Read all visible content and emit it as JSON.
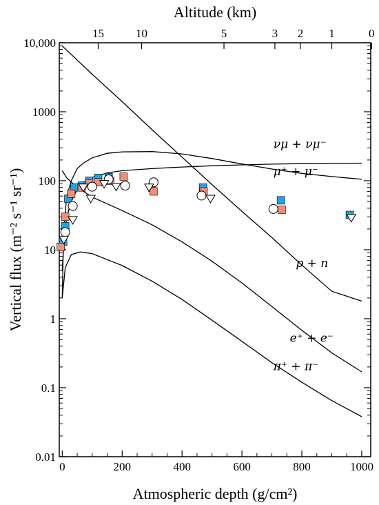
{
  "chart_data": {
    "type": "scatter",
    "xlabel": "Atmospheric depth (g/cm²)",
    "top_xlabel": "Altitude (km)",
    "ylabel": "Vertical flux (m⁻² s⁻¹ sr⁻¹)",
    "xlim": [
      -10,
      1030
    ],
    "ylim": [
      0.01,
      10000
    ],
    "yscale": "log",
    "x_ticks": [
      {
        "value": 0,
        "label": "0"
      },
      {
        "value": 200,
        "label": "200"
      },
      {
        "value": 400,
        "label": "400"
      },
      {
        "value": 600,
        "label": "600"
      },
      {
        "value": 800,
        "label": "800"
      },
      {
        "value": 1000,
        "label": "1000"
      }
    ],
    "y_ticks": [
      {
        "value": 10000,
        "label": "10,000"
      },
      {
        "value": 1000,
        "label": "1000"
      },
      {
        "value": 100,
        "label": "100"
      },
      {
        "value": 10,
        "label": "10"
      },
      {
        "value": 1,
        "label": "1"
      },
      {
        "value": 0.1,
        "label": "0.1"
      },
      {
        "value": 0.01,
        "label": "0.01"
      }
    ],
    "top_ticks": [
      {
        "label": "15",
        "depth": 120
      },
      {
        "label": "10",
        "depth": 265
      },
      {
        "label": "5",
        "depth": 540
      },
      {
        "label": "3",
        "depth": 710
      },
      {
        "label": "2",
        "depth": 795
      },
      {
        "label": "1",
        "depth": 900
      },
      {
        "label": "0",
        "depth": 1033
      }
    ],
    "curves": [
      {
        "label": "p + n",
        "label_at": [
          780,
          5.6
        ],
        "points": [
          [
            0,
            9000
          ],
          [
            100,
            3500
          ],
          [
            200,
            1400
          ],
          [
            300,
            550
          ],
          [
            400,
            220
          ],
          [
            500,
            88
          ],
          [
            600,
            36
          ],
          [
            700,
            15
          ],
          [
            800,
            6.0
          ],
          [
            900,
            2.5
          ],
          [
            1000,
            1.8
          ]
        ]
      },
      {
        "label": "νμ + νμ⁻",
        "label_at": [
          705,
          300
        ],
        "points": [
          [
            0,
            2
          ],
          [
            5,
            20
          ],
          [
            15,
            60
          ],
          [
            30,
            100
          ],
          [
            50,
            150
          ],
          [
            70,
            180
          ],
          [
            100,
            215
          ],
          [
            150,
            250
          ],
          [
            200,
            262
          ],
          [
            300,
            265
          ],
          [
            400,
            245
          ],
          [
            500,
            210
          ],
          [
            600,
            175
          ],
          [
            700,
            148
          ],
          [
            800,
            128
          ],
          [
            900,
            115
          ],
          [
            1000,
            105
          ]
        ]
      },
      {
        "label": "μ⁺ + μ⁻",
        "label_at": [
          705,
          120
        ],
        "points": [
          [
            0,
            5
          ],
          [
            5,
            12
          ],
          [
            15,
            30
          ],
          [
            30,
            50
          ],
          [
            50,
            75
          ],
          [
            70,
            95
          ],
          [
            100,
            112
          ],
          [
            150,
            130
          ],
          [
            200,
            140
          ],
          [
            300,
            150
          ],
          [
            400,
            158
          ],
          [
            500,
            165
          ],
          [
            600,
            170
          ],
          [
            700,
            174
          ],
          [
            800,
            177
          ],
          [
            1000,
            180
          ]
        ]
      },
      {
        "label": "e⁺ + e⁻",
        "label_at": [
          760,
          0.46
        ],
        "points": [
          [
            0,
            140
          ],
          [
            15,
            110
          ],
          [
            50,
            80
          ],
          [
            100,
            58
          ],
          [
            200,
            37
          ],
          [
            300,
            23
          ],
          [
            400,
            13
          ],
          [
            500,
            6.8
          ],
          [
            600,
            3.3
          ],
          [
            700,
            1.5
          ],
          [
            800,
            0.68
          ],
          [
            900,
            0.32
          ],
          [
            1000,
            0.17
          ]
        ]
      },
      {
        "label": "π⁺ + π⁻",
        "label_at": [
          705,
          0.18
        ],
        "points": [
          [
            0,
            2
          ],
          [
            10,
            5.5
          ],
          [
            30,
            8.5
          ],
          [
            60,
            9.3
          ],
          [
            100,
            8.8
          ],
          [
            200,
            5.9
          ],
          [
            300,
            3.5
          ],
          [
            400,
            1.9
          ],
          [
            500,
            0.95
          ],
          [
            600,
            0.47
          ],
          [
            700,
            0.23
          ],
          [
            800,
            0.12
          ],
          [
            900,
            0.065
          ],
          [
            1000,
            0.038
          ]
        ]
      }
    ],
    "series": [
      {
        "marker": "blue-square",
        "color": "#1ea4e8",
        "points": [
          [
            3,
            13
          ],
          [
            10,
            22
          ],
          [
            20,
            55
          ],
          [
            40,
            80
          ],
          [
            65,
            85
          ],
          [
            90,
            100
          ],
          [
            120,
            110
          ],
          [
            155,
            113
          ],
          [
            300,
            80
          ],
          [
            470,
            80
          ],
          [
            730,
            52
          ],
          [
            960,
            32
          ]
        ]
      },
      {
        "marker": "orange-square",
        "color": "#f09078",
        "points": [
          [
            -5,
            11
          ],
          [
            10,
            30
          ],
          [
            30,
            65
          ],
          [
            65,
            80
          ],
          [
            90,
            92
          ],
          [
            120,
            95
          ],
          [
            160,
            100
          ],
          [
            205,
            115
          ],
          [
            305,
            70
          ],
          [
            472,
            70
          ],
          [
            733,
            38
          ]
        ]
      },
      {
        "marker": "open-circle",
        "color": "#ffffff",
        "points": [
          [
            10,
            18
          ],
          [
            35,
            43
          ],
          [
            100,
            82
          ],
          [
            155,
            105
          ],
          [
            210,
            85
          ],
          [
            305,
            95
          ],
          [
            465,
            61
          ],
          [
            705,
            39
          ]
        ]
      },
      {
        "marker": "open-triangle",
        "color": "#ffffff",
        "points": [
          [
            5,
            14
          ],
          [
            35,
            27
          ],
          [
            70,
            80
          ],
          [
            95,
            55
          ],
          [
            140,
            90
          ],
          [
            180,
            82
          ],
          [
            290,
            80
          ],
          [
            495,
            55
          ],
          [
            965,
            29
          ]
        ]
      }
    ]
  }
}
